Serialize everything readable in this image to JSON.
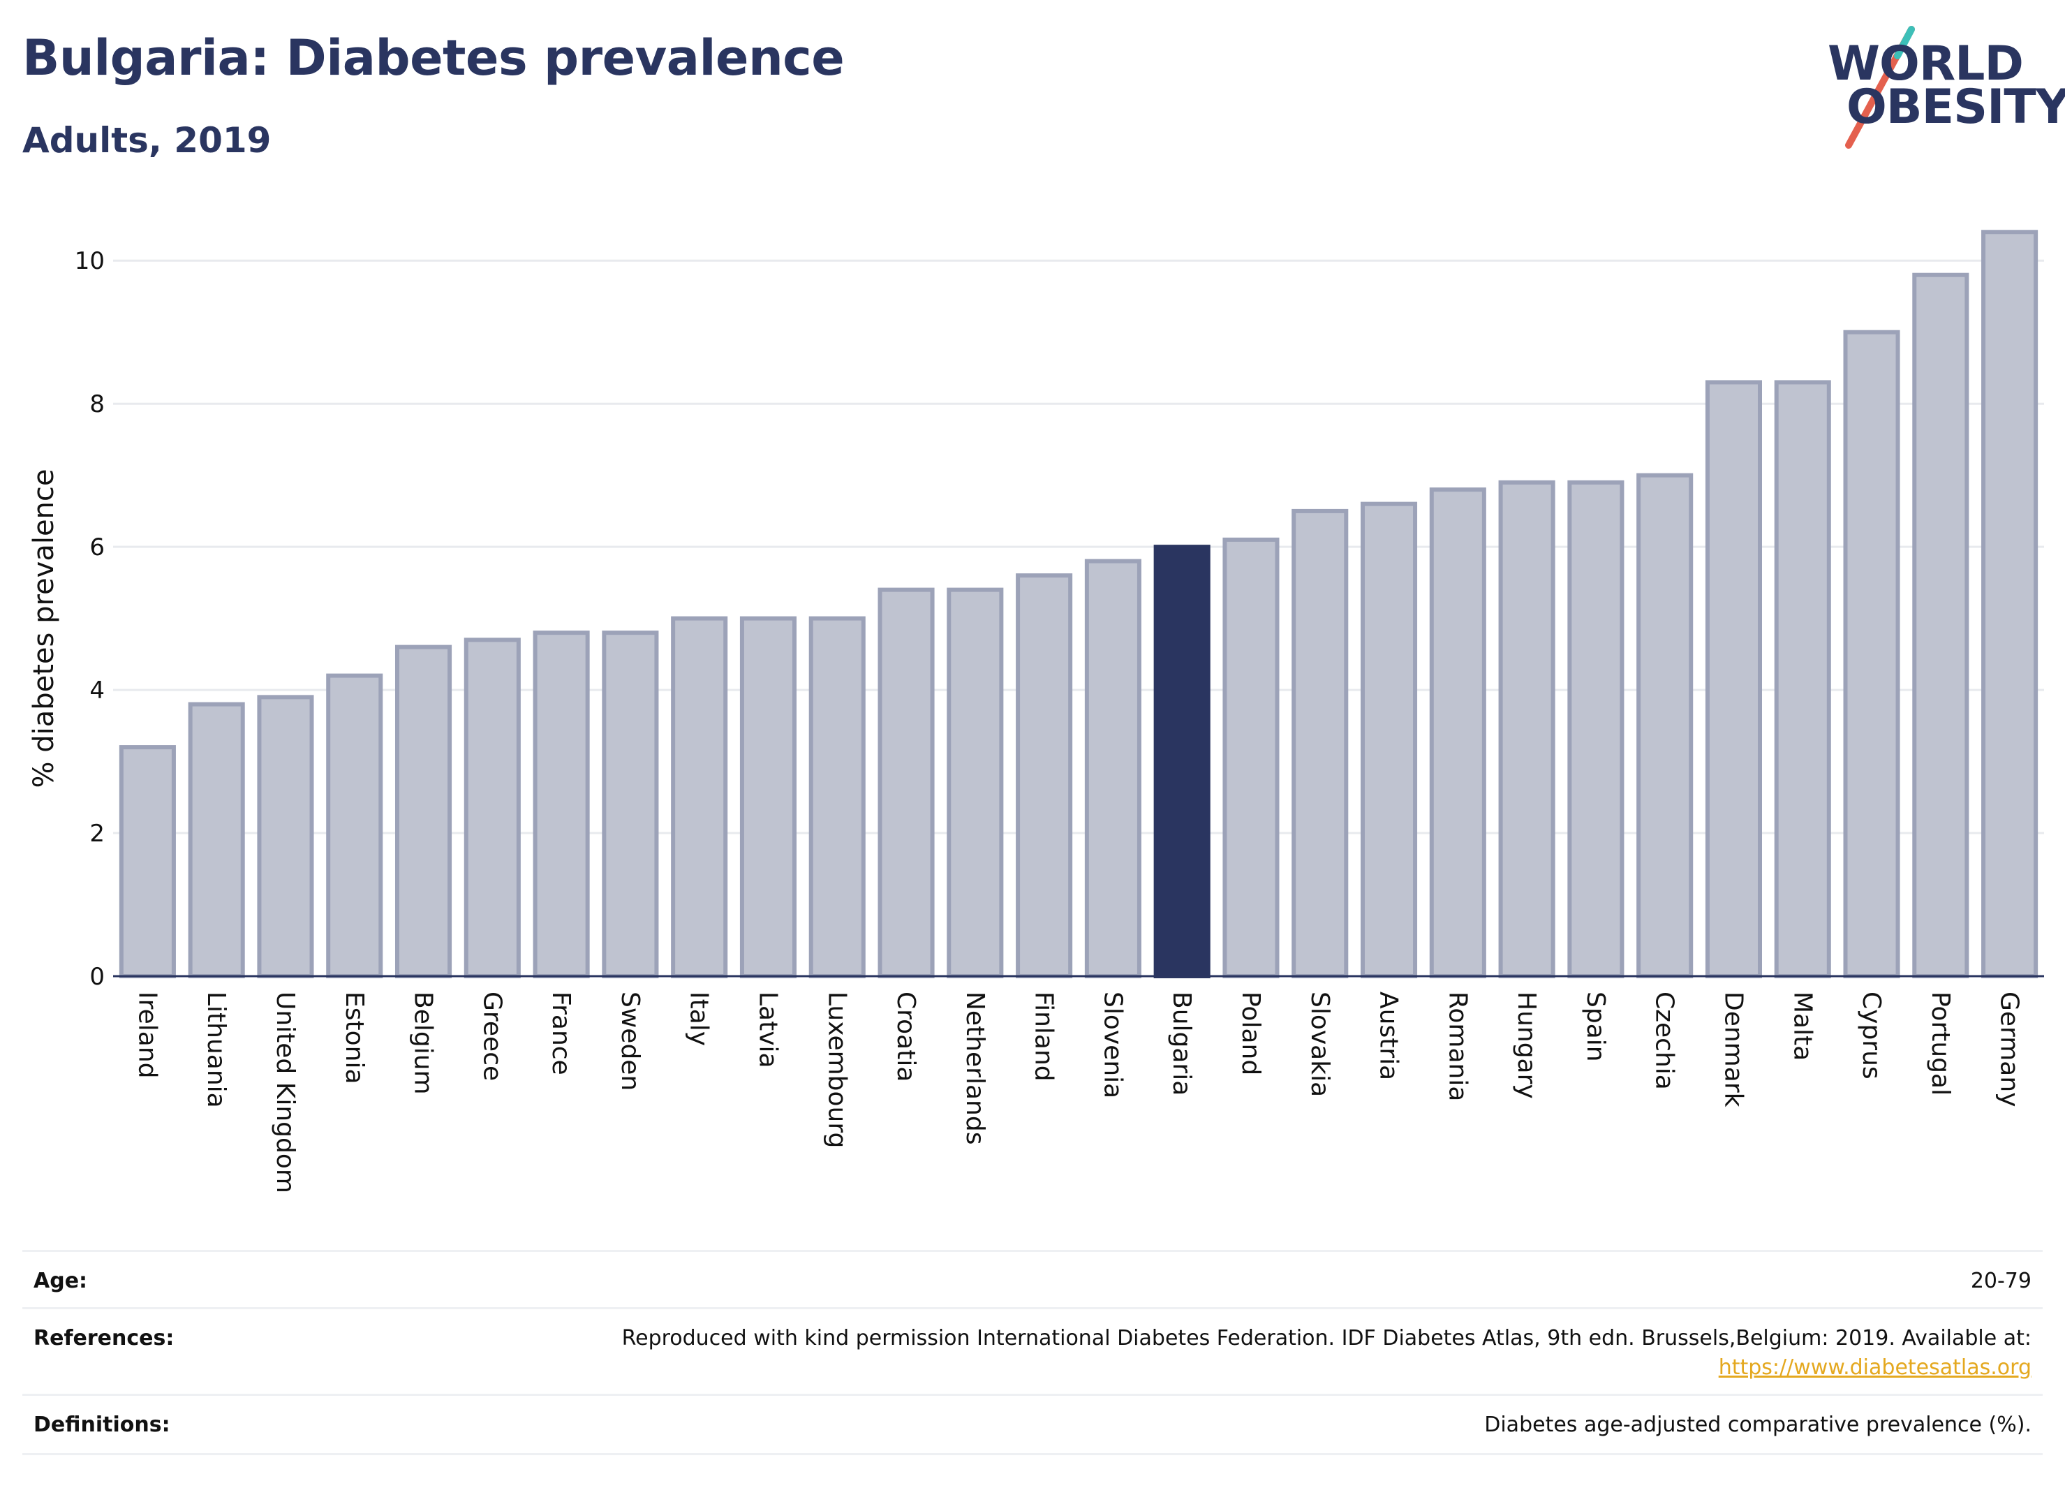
{
  "header": {
    "title": "Bulgaria: Diabetes prevalence",
    "subtitle": "Adults, 2019"
  },
  "logo": {
    "line1": "WORLD",
    "line2": "OBESITY",
    "colors": {
      "text": "#2a3560",
      "slash_teal": "#3dbfb8",
      "slash_red": "#e4604e"
    }
  },
  "colors": {
    "bar_default": "#bfc3d0",
    "bar_default_stroke": "#9ca2b8",
    "bar_highlight": "#2a3560",
    "grid": "#e8eaee",
    "axis": "#2a3560"
  },
  "chart_data": {
    "type": "bar",
    "title": "Bulgaria: Diabetes prevalence",
    "subtitle": "Adults, 2019",
    "xlabel": "",
    "ylabel": "% diabetes prevalence",
    "ylim": [
      0,
      10.5
    ],
    "yticks": [
      0,
      2,
      4,
      6,
      8,
      10
    ],
    "grid": true,
    "highlight": "Bulgaria",
    "categories": [
      "Ireland",
      "Lithuania",
      "United Kingdom",
      "Estonia",
      "Belgium",
      "Greece",
      "France",
      "Sweden",
      "Italy",
      "Latvia",
      "Luxembourg",
      "Croatia",
      "Netherlands",
      "Finland",
      "Slovenia",
      "Bulgaria",
      "Poland",
      "Slovakia",
      "Austria",
      "Romania",
      "Hungary",
      "Spain",
      "Czechia",
      "Denmark",
      "Malta",
      "Cyprus",
      "Portugal",
      "Germany"
    ],
    "values": [
      3.2,
      3.8,
      3.9,
      4.2,
      4.6,
      4.7,
      4.8,
      4.8,
      5.0,
      5.0,
      5.0,
      5.4,
      5.4,
      5.6,
      5.8,
      6.0,
      6.1,
      6.5,
      6.6,
      6.8,
      6.9,
      6.9,
      7.0,
      8.3,
      8.3,
      9.0,
      9.8,
      10.4
    ]
  },
  "info": {
    "age_label": "Age:",
    "age_value": "20-79",
    "references_label": "References:",
    "references_text": "Reproduced with kind permission International Diabetes Federation. IDF Diabetes Atlas, 9th edn. Brussels,Belgium: 2019. Available at:",
    "references_link": "https://www.diabetesatlas.org",
    "definitions_label": "Definitions:",
    "definitions_value": "Diabetes age-adjusted comparative prevalence (%)."
  }
}
